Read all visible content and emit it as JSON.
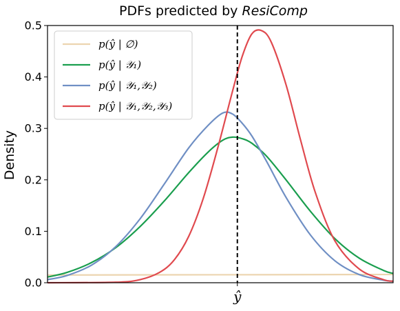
{
  "chart_data": {
    "type": "line",
    "title": "PDFs predicted by ",
    "title_emphasis": "ResiComp",
    "xlabel": "",
    "ylabel": "Density",
    "ylim": [
      0,
      0.5
    ],
    "xlim": [
      -3.9,
      3.2
    ],
    "yticks": [
      "0.0",
      "0.1",
      "0.2",
      "0.3",
      "0.4",
      "0.5"
    ],
    "ytick_values": [
      0,
      0.1,
      0.2,
      0.3,
      0.4,
      0.5
    ],
    "xtick_label": "ŷ",
    "xtick_value": 0,
    "reference_line": {
      "x": 0,
      "style": "dashed",
      "color": "#000000"
    },
    "grid": false,
    "legend_position": "top-left",
    "series": [
      {
        "name": "p(ŷ | ∅)",
        "color": "#ecd5b0",
        "x": [
          -3.9,
          3.2
        ],
        "y": [
          0.015,
          0.016
        ]
      },
      {
        "name": "p(ŷ | 𝒴₁)",
        "color": "#1a9e4e",
        "x": [
          -3.9,
          -3.5,
          -3.0,
          -2.5,
          -2.0,
          -1.5,
          -1.0,
          -0.6,
          -0.3,
          -0.1,
          0.1,
          0.3,
          0.6,
          1.0,
          1.5,
          2.0,
          2.5,
          3.0,
          3.2
        ],
        "y": [
          0.011,
          0.02,
          0.039,
          0.068,
          0.109,
          0.159,
          0.214,
          0.254,
          0.277,
          0.283,
          0.28,
          0.271,
          0.246,
          0.2,
          0.139,
          0.086,
          0.048,
          0.024,
          0.018
        ]
      },
      {
        "name": "p(ŷ | 𝒴₁,𝒴₂)",
        "color": "#6f8fc4",
        "x": [
          -3.9,
          -3.5,
          -3.0,
          -2.5,
          -2.0,
          -1.5,
          -1.0,
          -0.6,
          -0.3,
          -0.1,
          0.1,
          0.3,
          0.6,
          1.0,
          1.5,
          2.0,
          2.5,
          3.0,
          3.2
        ],
        "y": [
          0.006,
          0.014,
          0.034,
          0.07,
          0.124,
          0.192,
          0.262,
          0.306,
          0.33,
          0.328,
          0.31,
          0.285,
          0.236,
          0.166,
          0.093,
          0.043,
          0.016,
          0.005,
          0.003
        ]
      },
      {
        "name": "p(ŷ | 𝒴₁,𝒴₂,𝒴₃)",
        "color": "#e0494e",
        "x": [
          -3.9,
          -2.5,
          -2.0,
          -1.6,
          -1.3,
          -1.0,
          -0.7,
          -0.4,
          -0.1,
          0.1,
          0.3,
          0.5,
          0.7,
          1.0,
          1.3,
          1.6,
          2.0,
          2.5,
          3.0,
          3.2
        ],
        "y": [
          0.0,
          0.001,
          0.006,
          0.02,
          0.044,
          0.09,
          0.164,
          0.263,
          0.372,
          0.44,
          0.484,
          0.49,
          0.467,
          0.385,
          0.277,
          0.176,
          0.082,
          0.027,
          0.006,
          0.003
        ]
      }
    ]
  }
}
